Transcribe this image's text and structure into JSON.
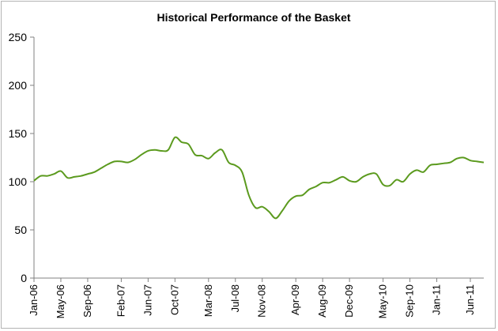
{
  "chart_data": {
    "type": "line",
    "title": "Historical Performance of the Basket",
    "xlabel": "",
    "ylabel": "",
    "ylim": [
      0,
      250
    ],
    "yticks": [
      0,
      50,
      100,
      150,
      200,
      250
    ],
    "grid": false,
    "legend": "none",
    "line_color": "#5b9a1e",
    "x_tick_labels": [
      "Jan-06",
      "May-06",
      "Sep-06",
      "Feb-07",
      "Jun-07",
      "Oct-07",
      "Mar-08",
      "Jul-08",
      "Nov-08",
      "Apr-09",
      "Aug-09",
      "Dec-09",
      "May-10",
      "Sep-10",
      "Jan-11",
      "Jun-11"
    ],
    "x_tick_dates": [
      "2006-01",
      "2006-05",
      "2006-09",
      "2007-02",
      "2007-06",
      "2007-10",
      "2008-03",
      "2008-07",
      "2008-11",
      "2009-04",
      "2009-08",
      "2009-12",
      "2010-05",
      "2010-09",
      "2011-01",
      "2011-06"
    ],
    "x_range": [
      "2006-01",
      "2011-08"
    ],
    "series": [
      {
        "name": "",
        "x": [
          "2006-01",
          "2006-02",
          "2006-03",
          "2006-04",
          "2006-05",
          "2006-06",
          "2006-07",
          "2006-08",
          "2006-09",
          "2006-10",
          "2006-11",
          "2006-12",
          "2007-01",
          "2007-02",
          "2007-03",
          "2007-04",
          "2007-05",
          "2007-06",
          "2007-07",
          "2007-08",
          "2007-09",
          "2007-10",
          "2007-11",
          "2007-12",
          "2008-01",
          "2008-02",
          "2008-03",
          "2008-04",
          "2008-05",
          "2008-06",
          "2008-07",
          "2008-08",
          "2008-09",
          "2008-10",
          "2008-11",
          "2008-12",
          "2009-01",
          "2009-02",
          "2009-03",
          "2009-04",
          "2009-05",
          "2009-06",
          "2009-07",
          "2009-08",
          "2009-09",
          "2009-10",
          "2009-11",
          "2009-12",
          "2010-01",
          "2010-02",
          "2010-03",
          "2010-04",
          "2010-05",
          "2010-06",
          "2010-07",
          "2010-08",
          "2010-09",
          "2010-10",
          "2010-11",
          "2010-12",
          "2011-01",
          "2011-02",
          "2011-03",
          "2011-04",
          "2011-05",
          "2011-06",
          "2011-07",
          "2011-08"
        ],
        "values": [
          101,
          106,
          106,
          108,
          111,
          104,
          105,
          106,
          108,
          110,
          114,
          118,
          121,
          121,
          120,
          123,
          128,
          132,
          133,
          132,
          133,
          146,
          141,
          139,
          128,
          127,
          124,
          130,
          133,
          120,
          117,
          110,
          86,
          73,
          74,
          69,
          62,
          70,
          80,
          85,
          86,
          92,
          95,
          99,
          99,
          102,
          105,
          101,
          100,
          105,
          108,
          108,
          97,
          96,
          102,
          100,
          108,
          112,
          110,
          117,
          118,
          119,
          120,
          124,
          125,
          122,
          121,
          120
        ]
      }
    ]
  }
}
